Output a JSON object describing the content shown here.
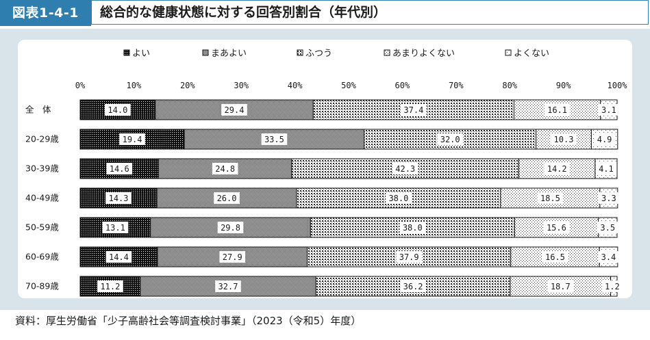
{
  "header": {
    "figure_label": "図表1-4-1",
    "title": "総合的な健康状態に対する回答別割合（年代別）"
  },
  "source": "資料：厚生労働省「少子高齢社会等調査検討事業」（2023（令和5）年度）",
  "chart_data": {
    "type": "bar",
    "orientation": "horizontal",
    "stacked": true,
    "xlim": [
      0,
      100
    ],
    "x_ticks": [
      "0%",
      "10%",
      "20%",
      "30%",
      "40%",
      "50%",
      "60%",
      "70%",
      "80%",
      "90%",
      "100%"
    ],
    "categories": [
      "全　体",
      "20-29歳",
      "30-39歳",
      "40-49歳",
      "50-59歳",
      "60-69歳",
      "70-89歳"
    ],
    "legend_position": "top",
    "series": [
      {
        "name": "よい",
        "pattern": "dense",
        "values": [
          14.0,
          19.4,
          14.6,
          14.3,
          13.1,
          14.4,
          11.2
        ]
      },
      {
        "name": "まあよい",
        "pattern": "fine",
        "values": [
          29.4,
          33.5,
          24.8,
          26.0,
          29.8,
          27.9,
          32.7
        ]
      },
      {
        "name": "ふつう",
        "pattern": "cross",
        "values": [
          37.4,
          32.0,
          42.3,
          38.0,
          38.0,
          37.9,
          36.2
        ]
      },
      {
        "name": "あまりよくない",
        "pattern": "dots",
        "values": [
          16.1,
          10.3,
          14.2,
          18.5,
          15.6,
          16.5,
          18.7
        ]
      },
      {
        "name": "よくない",
        "pattern": "sparse",
        "values": [
          3.1,
          4.9,
          4.1,
          3.3,
          3.5,
          3.4,
          1.2
        ]
      }
    ],
    "value_labels": [
      [
        "14.0",
        "29.4",
        "37.4",
        "16.1",
        "3.1"
      ],
      [
        "19.4",
        "33.5",
        "32.0",
        "10.3",
        "4.9"
      ],
      [
        "14.6",
        "24.8",
        "42.3",
        "14.2",
        "4.1"
      ],
      [
        "14.3",
        "26.0",
        "38.0",
        "18.5",
        "3.3"
      ],
      [
        "13.1",
        "29.8",
        "38.0",
        "15.6",
        "3.5"
      ],
      [
        "14.4",
        "27.9",
        "37.9",
        "16.5",
        "3.4"
      ],
      [
        "11.2",
        "32.7",
        "36.2",
        "18.7",
        "1.2"
      ]
    ]
  }
}
